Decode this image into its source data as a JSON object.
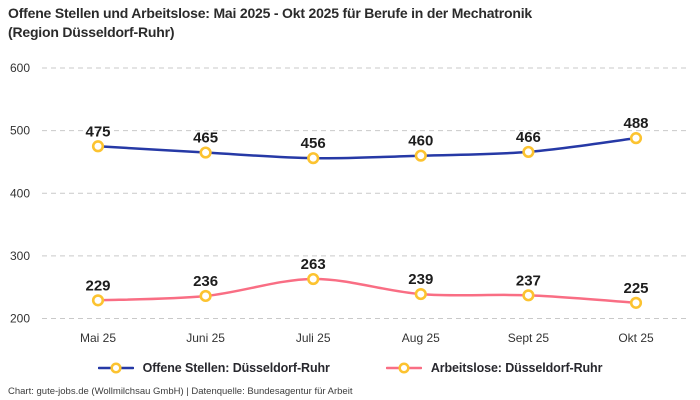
{
  "title_lines": [
    "Offene Stellen und Arbeitslose: Mai 2025 - Okt 2025 für Berufe in der Mechatronik",
    "(Region Düsseldorf-Ruhr)"
  ],
  "footer": "Chart: gute-jobs.de (Wollmilchsau GmbH) | Datenquelle: Bundesagentur für Arbeit",
  "colors": {
    "open_positions_line": "#2639a6",
    "unemployed_line": "#f96e84",
    "marker_ring": "#fcc330",
    "marker_fill": "#ffffff",
    "gridline": "#c9c9c9",
    "title_text": "#2b2b2b",
    "tick_text": "#333333",
    "data_label_text": "#1d1d1d"
  },
  "chart_data": {
    "type": "line",
    "title": "Offene Stellen und Arbeitslose: Mai 2025 - Okt 2025 für Berufe in der Mechatronik (Region Düsseldorf-Ruhr)",
    "categories": [
      "Mai 25",
      "Juni 25",
      "Juli 25",
      "Aug 25",
      "Sept 25",
      "Okt 25"
    ],
    "series": [
      {
        "name": "Offene Stellen: Düsseldorf-Ruhr",
        "values": [
          475,
          465,
          456,
          460,
          466,
          488
        ],
        "color": "#2639a6"
      },
      {
        "name": "Arbeitslose: Düsseldorf-Ruhr",
        "values": [
          229,
          236,
          263,
          239,
          237,
          225
        ],
        "color": "#f96e84"
      }
    ],
    "marker": {
      "shape": "circle-ring",
      "color": "#fcc330",
      "fill": "#ffffff"
    },
    "ylim": [
      200,
      600
    ],
    "yticks": [
      200,
      300,
      400,
      500,
      600
    ],
    "grid": "horizontal-dashed",
    "legend_position": "bottom",
    "data_labels": true,
    "line_style": "smooth"
  }
}
